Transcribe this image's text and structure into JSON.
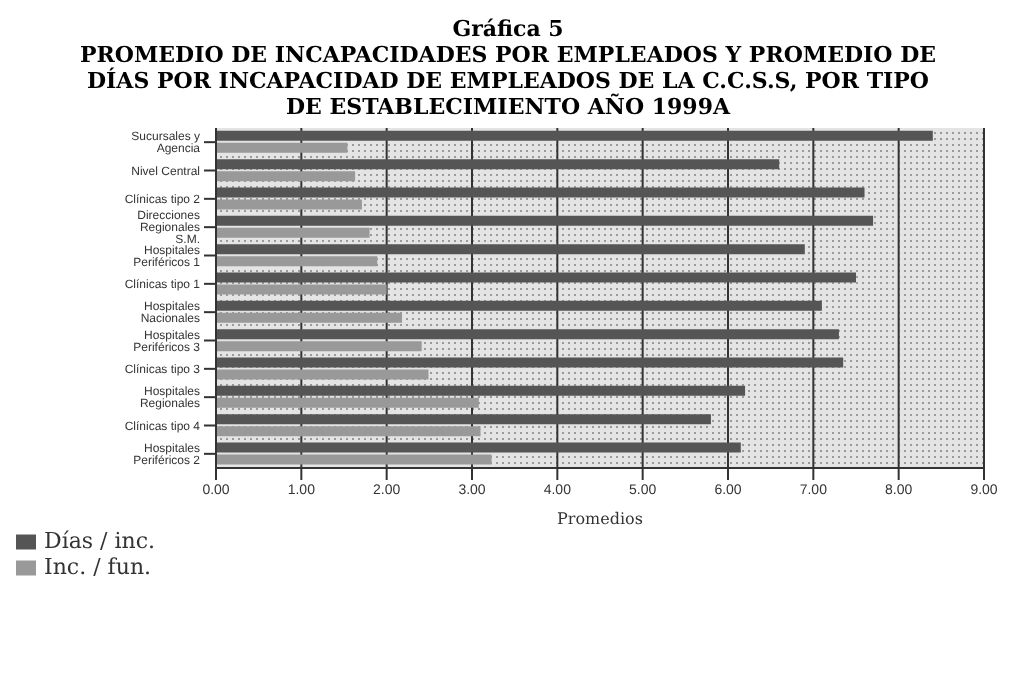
{
  "chart_data": {
    "type": "bar",
    "orientation": "horizontal",
    "title": "Gráfica 5",
    "subtitle": "PROMEDIO DE INCAPACIDADES POR EMPLEADOS Y PROMEDIO DE DÍAS POR INCAPACIDAD DE EMPLEADOS DE LA C.C.S.S, POR TIPO DE ESTABLECIMIENTO AÑO 1999A",
    "xlabel": "Promedios",
    "categories": [
      "Sucursales y Agencia",
      "Nivel Central",
      "Clínicas tipo 2",
      "Direcciones Regionales S.M.",
      "Hospitales Periféricos 1",
      "Clínicas tipo 1",
      "Hospitales Nacionales",
      "Hospitales Periféricos 3",
      "Clínicas tipo 3",
      "Hospitales Regionales",
      "Clínicas tipo 4",
      "Hospitales Periféricos 2"
    ],
    "series": [
      {
        "name": "Días / inc.",
        "color": "#555555",
        "values": [
          8.4,
          6.6,
          7.6,
          7.7,
          6.9,
          7.5,
          7.1,
          7.3,
          7.35,
          6.2,
          5.8,
          6.15
        ]
      },
      {
        "name": "Inc. / fun.",
        "color": "#999999",
        "values": [
          1.54,
          1.63,
          1.71,
          1.8,
          1.89,
          2.0,
          2.18,
          2.41,
          2.49,
          3.08,
          3.1,
          3.23
        ]
      }
    ],
    "xlim": [
      0,
      9
    ],
    "xticks": [
      {
        "value": 0,
        "label": "0.00"
      },
      {
        "value": 1,
        "label": "1.00"
      },
      {
        "value": 2,
        "label": "2.00"
      },
      {
        "value": 3,
        "label": "3.00"
      },
      {
        "value": 4,
        "label": "4.00"
      },
      {
        "value": 5,
        "label": "5.00"
      },
      {
        "value": 6,
        "label": "6.00"
      },
      {
        "value": 7,
        "label": "7.00"
      },
      {
        "value": 8,
        "label": "8.00"
      },
      {
        "value": 9,
        "label": "9.00"
      }
    ],
    "grid": "x",
    "legend": "bottom left"
  }
}
